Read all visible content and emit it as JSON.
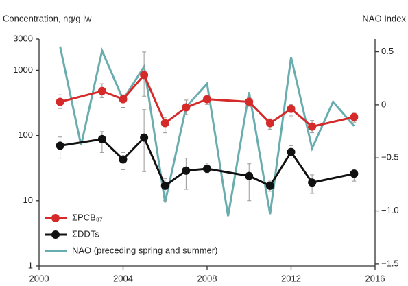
{
  "chart_data": {
    "type": "line",
    "y_label": "Concentration, ng/g lw",
    "y2_label": "NAO Index",
    "xlim": [
      2000,
      2016
    ],
    "xticks": [
      2000,
      2004,
      2008,
      2012,
      2016
    ],
    "ylim": [
      1,
      3000
    ],
    "yticks": [
      1,
      10,
      100,
      1000,
      3000
    ],
    "y_log": true,
    "y2lim": [
      -1.52,
      0.62
    ],
    "y2ticks": [
      {
        "value": -1.5,
        "label": "−1.5"
      },
      {
        "value": -1.0,
        "label": "−1.0"
      },
      {
        "value": -0.5,
        "label": "−0.5"
      },
      0,
      0.5
    ],
    "legend": "lower left",
    "series": [
      {
        "name": "NAO (preceding spring and summer)",
        "color": "#6aadae",
        "axis": "y2",
        "markers": false,
        "x": [
          2001,
          2002,
          2003,
          2004,
          2005,
          2006,
          2007,
          2008,
          2009,
          2010,
          2011,
          2012,
          2013,
          2014,
          2015
        ],
        "values": [
          0.55,
          -0.38,
          0.51,
          0.05,
          0.36,
          -0.92,
          -0.02,
          0.2,
          -1.05,
          0.12,
          -1.03,
          0.45,
          -0.41,
          0.03,
          -0.2
        ]
      },
      {
        "name": "ΣPCB₈₇",
        "color": "#d42a2a",
        "markers": true,
        "x": [
          2001,
          2003,
          2004,
          2005,
          2006,
          2007,
          2008,
          2010,
          2011,
          2012,
          2013,
          2015
        ],
        "values": [
          328,
          480,
          360,
          845,
          155,
          270,
          360,
          328,
          155,
          257,
          137,
          192
        ],
        "low": [
          260,
          380,
          270,
          400,
          110,
          210,
          300,
          280,
          125,
          200,
          110,
          160
        ],
        "high": [
          420,
          620,
          420,
          1900,
          190,
          350,
          400,
          380,
          180,
          300,
          170,
          220
        ]
      },
      {
        "name": "ΣDDTs",
        "color": "#111111",
        "markers": true,
        "x": [
          2001,
          2003,
          2004,
          2005,
          2006,
          2007,
          2008,
          2010,
          2011,
          2012,
          2013,
          2015
        ],
        "values": [
          70,
          88,
          43,
          93,
          17,
          29,
          31,
          24,
          17,
          56,
          19,
          26
        ],
        "low": [
          45,
          55,
          30,
          28,
          10,
          15,
          27,
          10,
          14,
          45,
          13,
          20
        ],
        "high": [
          95,
          115,
          55,
          250,
          22,
          45,
          38,
          37,
          20,
          70,
          25,
          30
        ]
      }
    ]
  }
}
